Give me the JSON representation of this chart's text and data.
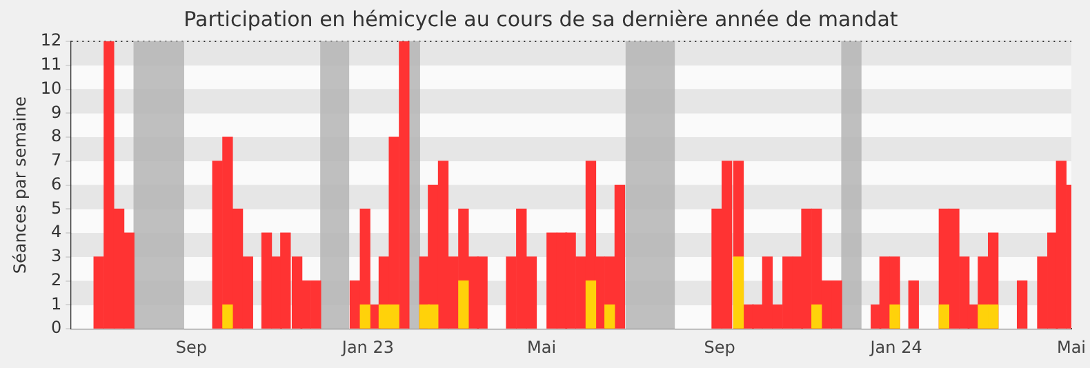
{
  "chart_data": {
    "type": "bar",
    "title": "Participation en hémicycle au cours de sa dernière année de mandat",
    "ylabel": "Séances par semaine",
    "xlim": [
      "2022-06-10",
      "2024-05-01"
    ],
    "xticks": [
      {
        "value": "2022-09-01",
        "label": "Sep"
      },
      {
        "value": "2023-01-01",
        "label": "Jan 23"
      },
      {
        "value": "2023-05-01",
        "label": "Mai"
      },
      {
        "value": "2023-09-01",
        "label": "Sep"
      },
      {
        "value": "2024-01-01",
        "label": "Jan 24"
      },
      {
        "value": "2024-05-01",
        "label": "Mai"
      }
    ],
    "ylim": [
      0,
      12
    ],
    "yticks": [
      0,
      1,
      2,
      3,
      4,
      5,
      6,
      7,
      8,
      9,
      10,
      11,
      12
    ],
    "grid": "y",
    "legend": false,
    "bands": [
      {
        "axis": "x",
        "from": "2022-07-23",
        "to": "2022-08-27",
        "color": "#b4b4b4"
      },
      {
        "axis": "x",
        "from": "2022-11-29",
        "to": "2022-12-19",
        "color": "#b4b4b4"
      },
      {
        "axis": "x",
        "from": "2023-01-29",
        "to": "2023-02-06",
        "color": "#b4b4b4"
      },
      {
        "axis": "x",
        "from": "2023-06-28",
        "to": "2023-08-01",
        "color": "#b4b4b4"
      },
      {
        "axis": "x",
        "from": "2023-11-24",
        "to": "2023-12-08",
        "color": "#b4b4b4"
      }
    ],
    "series": [
      {
        "color": "#ff3333",
        "x": [
          "2022-06-29",
          "2022-07-06",
          "2022-07-13",
          "2022-07-20",
          "2022-09-19",
          "2022-09-26",
          "2022-10-03",
          "2022-10-10",
          "2022-10-23",
          "2022-10-30",
          "2022-11-05",
          "2022-11-13",
          "2022-11-19",
          "2022-11-26",
          "2022-12-23",
          "2022-12-30",
          "2023-01-06",
          "2023-01-12",
          "2023-01-19",
          "2023-01-26",
          "2023-02-09",
          "2023-02-15",
          "2023-02-22",
          "2023-03-01",
          "2023-03-08",
          "2023-03-15",
          "2023-03-21",
          "2023-04-10",
          "2023-04-17",
          "2023-04-24",
          "2023-05-08",
          "2023-05-15",
          "2023-05-21",
          "2023-05-28",
          "2023-06-04",
          "2023-06-10",
          "2023-06-17",
          "2023-06-24",
          "2023-08-30",
          "2023-09-06",
          "2023-09-14",
          "2023-09-21",
          "2023-09-27",
          "2023-10-04",
          "2023-10-11",
          "2023-10-18",
          "2023-10-25",
          "2023-10-31",
          "2023-11-07",
          "2023-11-14",
          "2023-11-21",
          "2023-12-18",
          "2023-12-24",
          "2023-12-31",
          "2024-01-13",
          "2024-02-03",
          "2024-02-10",
          "2024-02-17",
          "2024-02-23",
          "2024-03-01",
          "2024-03-08",
          "2024-03-28",
          "2024-04-11",
          "2024-04-18",
          "2024-04-24",
          "2024-05-01"
        ],
        "values": [
          3,
          12,
          5,
          4,
          7,
          8,
          5,
          3,
          4,
          3,
          4,
          3,
          2,
          2,
          2,
          5,
          1,
          3,
          8,
          12,
          3,
          6,
          7,
          3,
          5,
          3,
          3,
          3,
          5,
          3,
          4,
          4,
          4,
          3,
          7,
          3,
          3,
          6,
          5,
          7,
          7,
          1,
          1,
          3,
          1,
          3,
          3,
          5,
          5,
          2,
          2,
          1,
          3,
          3,
          2,
          5,
          5,
          3,
          1,
          3,
          4,
          2,
          3,
          4,
          7,
          6
        ]
      },
      {
        "color": "#ffd20a",
        "x": [
          "2022-09-26",
          "2022-12-30",
          "2023-01-12",
          "2023-01-19",
          "2023-02-09",
          "2023-02-15",
          "2023-03-08",
          "2023-06-04",
          "2023-06-17",
          "2023-09-14",
          "2023-11-07",
          "2023-12-31",
          "2024-02-03",
          "2024-03-01",
          "2024-03-08"
        ],
        "values": [
          1,
          1,
          1,
          1,
          1,
          1,
          2,
          2,
          1,
          3,
          1,
          1,
          1,
          1,
          1
        ]
      }
    ]
  }
}
